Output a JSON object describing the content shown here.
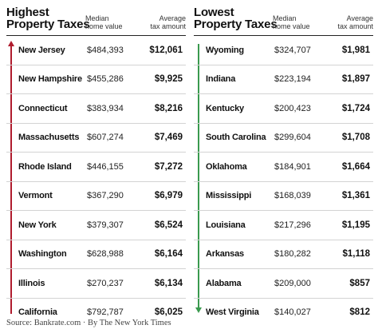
{
  "left": {
    "title_line1": "Highest",
    "title_line2": "Property Taxes",
    "col_home_line1": "Median",
    "col_home_line2": "home value",
    "col_tax_line1": "Average",
    "col_tax_line2": "tax amount",
    "arrow_color": "#b01c2e",
    "rows": [
      {
        "state": "New Jersey",
        "home": "$484,393",
        "tax": "$12,061"
      },
      {
        "state": "New Hampshire",
        "home": "$455,286",
        "tax": "$9,925"
      },
      {
        "state": "Connecticut",
        "home": "$383,934",
        "tax": "$8,216"
      },
      {
        "state": "Massachusetts",
        "home": "$607,274",
        "tax": "$7,469"
      },
      {
        "state": "Rhode Island",
        "home": "$446,155",
        "tax": "$7,272"
      },
      {
        "state": "Vermont",
        "home": "$367,290",
        "tax": "$6,979"
      },
      {
        "state": "New York",
        "home": "$379,307",
        "tax": "$6,524"
      },
      {
        "state": "Washington",
        "home": "$628,988",
        "tax": "$6,164"
      },
      {
        "state": "Illinois",
        "home": "$270,237",
        "tax": "$6,134"
      },
      {
        "state": "California",
        "home": "$792,787",
        "tax": "$6,025"
      }
    ]
  },
  "right": {
    "title_line1": "Lowest",
    "title_line2": "Property Taxes",
    "col_home_line1": "Median",
    "col_home_line2": "home value",
    "col_tax_line1": "Average",
    "col_tax_line2": "tax amount",
    "arrow_color": "#3a9a4e",
    "rows": [
      {
        "state": "Wyoming",
        "home": "$324,707",
        "tax": "$1,981"
      },
      {
        "state": "Indiana",
        "home": "$223,194",
        "tax": "$1,897"
      },
      {
        "state": "Kentucky",
        "home": "$200,423",
        "tax": "$1,724"
      },
      {
        "state": "South Carolina",
        "home": "$299,604",
        "tax": "$1,708"
      },
      {
        "state": "Oklahoma",
        "home": "$184,901",
        "tax": "$1,664"
      },
      {
        "state": "Mississippi",
        "home": "$168,039",
        "tax": "$1,361"
      },
      {
        "state": "Louisiana",
        "home": "$217,296",
        "tax": "$1,195"
      },
      {
        "state": "Arkansas",
        "home": "$180,282",
        "tax": "$1,118"
      },
      {
        "state": "Alabama",
        "home": "$209,000",
        "tax": "$857"
      },
      {
        "state": "West Virginia",
        "home": "$140,027",
        "tax": "$812"
      }
    ]
  },
  "source": "Source: Bankrate.com   ·   By The New York Times"
}
